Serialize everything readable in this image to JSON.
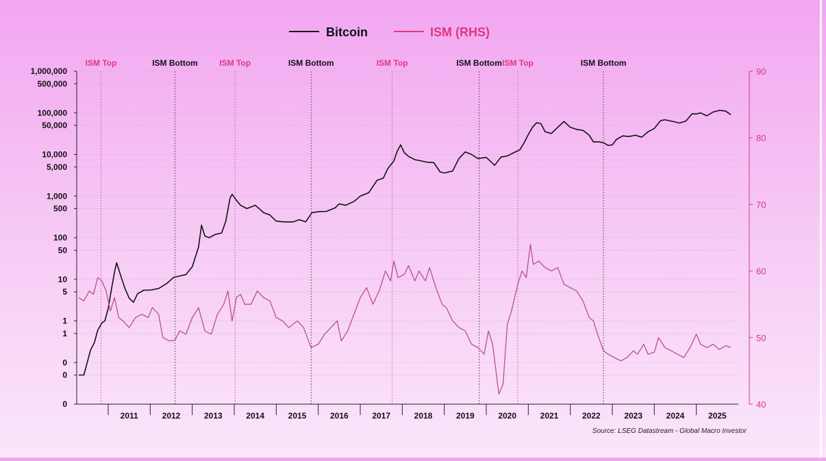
{
  "colors": {
    "bitcoin": "#111111",
    "ism": "#b8508f",
    "ism_label": "#e0387e",
    "bottom_label": "#111111",
    "right_axis": "#d23a8a",
    "grid": "#c9a6c9"
  },
  "legend": [
    {
      "label": "Bitcoin",
      "color": "#111111"
    },
    {
      "label": "ISM (RHS)",
      "color": "#e0387e"
    }
  ],
  "source": "Source: LSEG Datastream - Global Macro Investor",
  "chart_data": {
    "type": "line",
    "x_range": [
      2010.25,
      2026.0
    ],
    "x_ticks": [
      {
        "year": 2011,
        "label": "2011"
      },
      {
        "year": 2012,
        "label": "2012"
      },
      {
        "year": 2013,
        "label": "2013"
      },
      {
        "year": 2014,
        "label": "2014"
      },
      {
        "year": 2015,
        "label": "2015"
      },
      {
        "year": 2016,
        "label": "2016"
      },
      {
        "year": 2017,
        "label": "2017"
      },
      {
        "year": 2018,
        "label": "2018"
      },
      {
        "year": 2019,
        "label": "2019"
      },
      {
        "year": 2020,
        "label": "2020"
      },
      {
        "year": 2021,
        "label": "2021"
      },
      {
        "year": 2022,
        "label": "2022"
      },
      {
        "year": 2023,
        "label": "2023"
      },
      {
        "year": 2024,
        "label": "2024"
      },
      {
        "year": 2025,
        "label": "2025"
      }
    ],
    "left_axis": {
      "scale": "log",
      "range": [
        0.01,
        1000000
      ],
      "ticks": [
        {
          "value": 1000000,
          "label": "1,000,000"
        },
        {
          "value": 500000,
          "label": "500,000"
        },
        {
          "value": 100000,
          "label": "100,000"
        },
        {
          "value": 50000,
          "label": "50,000"
        },
        {
          "value": 10000,
          "label": "10,000"
        },
        {
          "value": 5000,
          "label": "5,000"
        },
        {
          "value": 1000,
          "label": "1,000"
        },
        {
          "value": 500,
          "label": "500"
        },
        {
          "value": 100,
          "label": "100"
        },
        {
          "value": 50,
          "label": "50"
        },
        {
          "value": 10,
          "label": "10"
        },
        {
          "value": 5,
          "label": "5"
        },
        {
          "value": 1,
          "label": "1"
        },
        {
          "value": 0.5,
          "label": "1"
        },
        {
          "value": 0.1,
          "label": "0"
        },
        {
          "value": 0.05,
          "label": "0"
        },
        {
          "value": 0.01,
          "label": "0"
        }
      ]
    },
    "right_axis": {
      "scale": "linear",
      "range": [
        40,
        90
      ],
      "ticks": [
        {
          "value": 90,
          "label": "90"
        },
        {
          "value": 80,
          "label": "80"
        },
        {
          "value": 70,
          "label": "70"
        },
        {
          "value": 60,
          "label": "60"
        },
        {
          "value": 50,
          "label": "50"
        },
        {
          "value": 40,
          "label": "40"
        }
      ]
    },
    "grid": true,
    "legend_position": "top-center",
    "annotations": [
      {
        "year": 2010.83,
        "label": "ISM Top",
        "kind": "top"
      },
      {
        "year": 2012.59,
        "label": "ISM Bottom",
        "kind": "bottom"
      },
      {
        "year": 2014.02,
        "label": "ISM Top",
        "kind": "top"
      },
      {
        "year": 2015.83,
        "label": "ISM Bottom",
        "kind": "bottom"
      },
      {
        "year": 2017.76,
        "label": "ISM Top",
        "kind": "top"
      },
      {
        "year": 2019.83,
        "label": "ISM Bottom",
        "kind": "bottom"
      },
      {
        "year": 2020.75,
        "label": "ISM Top",
        "kind": "top"
      },
      {
        "year": 2022.79,
        "label": "ISM Bottom",
        "kind": "bottom"
      }
    ],
    "series": [
      {
        "name": "Bitcoin",
        "axis": "left",
        "points": [
          [
            2010.3,
            0.05
          ],
          [
            2010.42,
            0.05
          ],
          [
            2010.5,
            0.1
          ],
          [
            2010.58,
            0.2
          ],
          [
            2010.67,
            0.3
          ],
          [
            2010.75,
            0.6
          ],
          [
            2010.85,
            0.9
          ],
          [
            2010.92,
            1.0
          ],
          [
            2011.0,
            2.0
          ],
          [
            2011.08,
            6
          ],
          [
            2011.15,
            15
          ],
          [
            2011.2,
            25
          ],
          [
            2011.3,
            12
          ],
          [
            2011.4,
            6
          ],
          [
            2011.5,
            3.5
          ],
          [
            2011.6,
            2.8
          ],
          [
            2011.7,
            4.5
          ],
          [
            2011.85,
            5.5
          ],
          [
            2012.0,
            5.5
          ],
          [
            2012.2,
            6
          ],
          [
            2012.4,
            8
          ],
          [
            2012.55,
            11
          ],
          [
            2012.7,
            12
          ],
          [
            2012.85,
            13
          ],
          [
            2013.0,
            20
          ],
          [
            2013.15,
            60
          ],
          [
            2013.22,
            200
          ],
          [
            2013.3,
            110
          ],
          [
            2013.4,
            100
          ],
          [
            2013.55,
            120
          ],
          [
            2013.7,
            130
          ],
          [
            2013.8,
            250
          ],
          [
            2013.9,
            900
          ],
          [
            2013.95,
            1100
          ],
          [
            2014.05,
            800
          ],
          [
            2014.15,
            600
          ],
          [
            2014.3,
            500
          ],
          [
            2014.5,
            600
          ],
          [
            2014.7,
            400
          ],
          [
            2014.85,
            350
          ],
          [
            2015.0,
            250
          ],
          [
            2015.2,
            240
          ],
          [
            2015.4,
            240
          ],
          [
            2015.55,
            270
          ],
          [
            2015.7,
            240
          ],
          [
            2015.85,
            400
          ],
          [
            2016.0,
            420
          ],
          [
            2016.2,
            430
          ],
          [
            2016.4,
            520
          ],
          [
            2016.5,
            650
          ],
          [
            2016.65,
            600
          ],
          [
            2016.85,
            740
          ],
          [
            2017.0,
            1000
          ],
          [
            2017.2,
            1200
          ],
          [
            2017.4,
            2400
          ],
          [
            2017.55,
            2700
          ],
          [
            2017.65,
            4500
          ],
          [
            2017.8,
            7000
          ],
          [
            2017.88,
            12000
          ],
          [
            2017.96,
            17000
          ],
          [
            2018.05,
            11000
          ],
          [
            2018.15,
            9000
          ],
          [
            2018.3,
            7500
          ],
          [
            2018.45,
            7000
          ],
          [
            2018.6,
            6500
          ],
          [
            2018.75,
            6400
          ],
          [
            2018.9,
            3800
          ],
          [
            2019.0,
            3600
          ],
          [
            2019.2,
            4000
          ],
          [
            2019.35,
            8000
          ],
          [
            2019.5,
            11500
          ],
          [
            2019.65,
            10000
          ],
          [
            2019.8,
            8000
          ],
          [
            2020.0,
            8500
          ],
          [
            2020.2,
            5500
          ],
          [
            2020.35,
            8700
          ],
          [
            2020.5,
            9200
          ],
          [
            2020.65,
            11000
          ],
          [
            2020.8,
            13000
          ],
          [
            2020.9,
            19000
          ],
          [
            2021.0,
            30000
          ],
          [
            2021.1,
            45000
          ],
          [
            2021.2,
            58000
          ],
          [
            2021.3,
            55000
          ],
          [
            2021.4,
            35000
          ],
          [
            2021.55,
            32000
          ],
          [
            2021.7,
            45000
          ],
          [
            2021.85,
            62000
          ],
          [
            2022.0,
            45000
          ],
          [
            2022.15,
            40000
          ],
          [
            2022.3,
            38000
          ],
          [
            2022.45,
            29000
          ],
          [
            2022.55,
            20000
          ],
          [
            2022.7,
            20000
          ],
          [
            2022.8,
            19000
          ],
          [
            2022.9,
            16500
          ],
          [
            2023.0,
            17000
          ],
          [
            2023.1,
            23000
          ],
          [
            2023.25,
            28000
          ],
          [
            2023.4,
            27000
          ],
          [
            2023.55,
            29000
          ],
          [
            2023.7,
            26000
          ],
          [
            2023.85,
            35000
          ],
          [
            2024.0,
            42000
          ],
          [
            2024.15,
            65000
          ],
          [
            2024.25,
            68000
          ],
          [
            2024.45,
            62000
          ],
          [
            2024.6,
            57000
          ],
          [
            2024.75,
            63000
          ],
          [
            2024.9,
            95000
          ],
          [
            2025.0,
            94000
          ],
          [
            2025.1,
            100000
          ],
          [
            2025.25,
            85000
          ],
          [
            2025.4,
            105000
          ],
          [
            2025.55,
            115000
          ],
          [
            2025.7,
            110000
          ],
          [
            2025.82,
            90000
          ]
        ]
      },
      {
        "name": "ISM (RHS)",
        "axis": "right",
        "points": [
          [
            2010.3,
            56
          ],
          [
            2010.42,
            55.5
          ],
          [
            2010.55,
            57
          ],
          [
            2010.65,
            56.5
          ],
          [
            2010.75,
            59
          ],
          [
            2010.85,
            58.5
          ],
          [
            2010.95,
            57
          ],
          [
            2011.05,
            54
          ],
          [
            2011.15,
            56
          ],
          [
            2011.25,
            53
          ],
          [
            2011.35,
            52.5
          ],
          [
            2011.5,
            51.5
          ],
          [
            2011.65,
            53
          ],
          [
            2011.8,
            53.5
          ],
          [
            2011.95,
            53
          ],
          [
            2012.05,
            54.5
          ],
          [
            2012.2,
            53.5
          ],
          [
            2012.3,
            50
          ],
          [
            2012.45,
            49.5
          ],
          [
            2012.59,
            49.6
          ],
          [
            2012.7,
            51
          ],
          [
            2012.85,
            50.5
          ],
          [
            2013.0,
            53
          ],
          [
            2013.15,
            54.5
          ],
          [
            2013.3,
            51
          ],
          [
            2013.45,
            50.5
          ],
          [
            2013.6,
            53.5
          ],
          [
            2013.75,
            55
          ],
          [
            2013.85,
            57
          ],
          [
            2013.95,
            52.5
          ],
          [
            2014.05,
            56
          ],
          [
            2014.15,
            56.5
          ],
          [
            2014.25,
            55
          ],
          [
            2014.4,
            55
          ],
          [
            2014.55,
            57
          ],
          [
            2014.7,
            56
          ],
          [
            2014.85,
            55.5
          ],
          [
            2015.0,
            53
          ],
          [
            2015.15,
            52.5
          ],
          [
            2015.3,
            51.5
          ],
          [
            2015.5,
            52.5
          ],
          [
            2015.65,
            51.5
          ],
          [
            2015.83,
            48.5
          ],
          [
            2016.0,
            49
          ],
          [
            2016.15,
            50.5
          ],
          [
            2016.3,
            51.5
          ],
          [
            2016.45,
            52.5
          ],
          [
            2016.55,
            49.5
          ],
          [
            2016.7,
            51
          ],
          [
            2016.85,
            53.5
          ],
          [
            2017.0,
            56
          ],
          [
            2017.15,
            57.5
          ],
          [
            2017.3,
            55
          ],
          [
            2017.45,
            57
          ],
          [
            2017.6,
            60
          ],
          [
            2017.72,
            58.5
          ],
          [
            2017.8,
            61.5
          ],
          [
            2017.9,
            59
          ],
          [
            2018.05,
            59.5
          ],
          [
            2018.15,
            60.8
          ],
          [
            2018.3,
            58.5
          ],
          [
            2018.4,
            60
          ],
          [
            2018.55,
            58.5
          ],
          [
            2018.65,
            60.5
          ],
          [
            2018.8,
            57.5
          ],
          [
            2018.95,
            55
          ],
          [
            2019.05,
            54.5
          ],
          [
            2019.2,
            52.5
          ],
          [
            2019.35,
            51.5
          ],
          [
            2019.5,
            51
          ],
          [
            2019.65,
            49
          ],
          [
            2019.8,
            48.5
          ],
          [
            2019.95,
            47.5
          ],
          [
            2020.05,
            51
          ],
          [
            2020.15,
            49
          ],
          [
            2020.3,
            41.5
          ],
          [
            2020.4,
            43
          ],
          [
            2020.5,
            52
          ],
          [
            2020.6,
            54
          ],
          [
            2020.75,
            58
          ],
          [
            2020.85,
            60
          ],
          [
            2020.95,
            59
          ],
          [
            2021.05,
            64
          ],
          [
            2021.12,
            61
          ],
          [
            2021.25,
            61.5
          ],
          [
            2021.4,
            60.5
          ],
          [
            2021.55,
            60
          ],
          [
            2021.7,
            60.5
          ],
          [
            2021.85,
            58
          ],
          [
            2022.0,
            57.5
          ],
          [
            2022.15,
            57
          ],
          [
            2022.3,
            55.5
          ],
          [
            2022.45,
            53
          ],
          [
            2022.55,
            52.5
          ],
          [
            2022.65,
            50.5
          ],
          [
            2022.79,
            48
          ],
          [
            2022.9,
            47.5
          ],
          [
            2023.05,
            47
          ],
          [
            2023.2,
            46.5
          ],
          [
            2023.35,
            47
          ],
          [
            2023.5,
            48
          ],
          [
            2023.6,
            47.5
          ],
          [
            2023.75,
            49
          ],
          [
            2023.85,
            47.5
          ],
          [
            2024.0,
            47.8
          ],
          [
            2024.1,
            50
          ],
          [
            2024.25,
            48.5
          ],
          [
            2024.4,
            48
          ],
          [
            2024.55,
            47.5
          ],
          [
            2024.7,
            47
          ],
          [
            2024.85,
            48.5
          ],
          [
            2025.0,
            50.5
          ],
          [
            2025.1,
            49
          ],
          [
            2025.25,
            48.5
          ],
          [
            2025.4,
            49
          ],
          [
            2025.55,
            48.2
          ],
          [
            2025.7,
            48.8
          ],
          [
            2025.82,
            48.5
          ]
        ]
      }
    ]
  }
}
